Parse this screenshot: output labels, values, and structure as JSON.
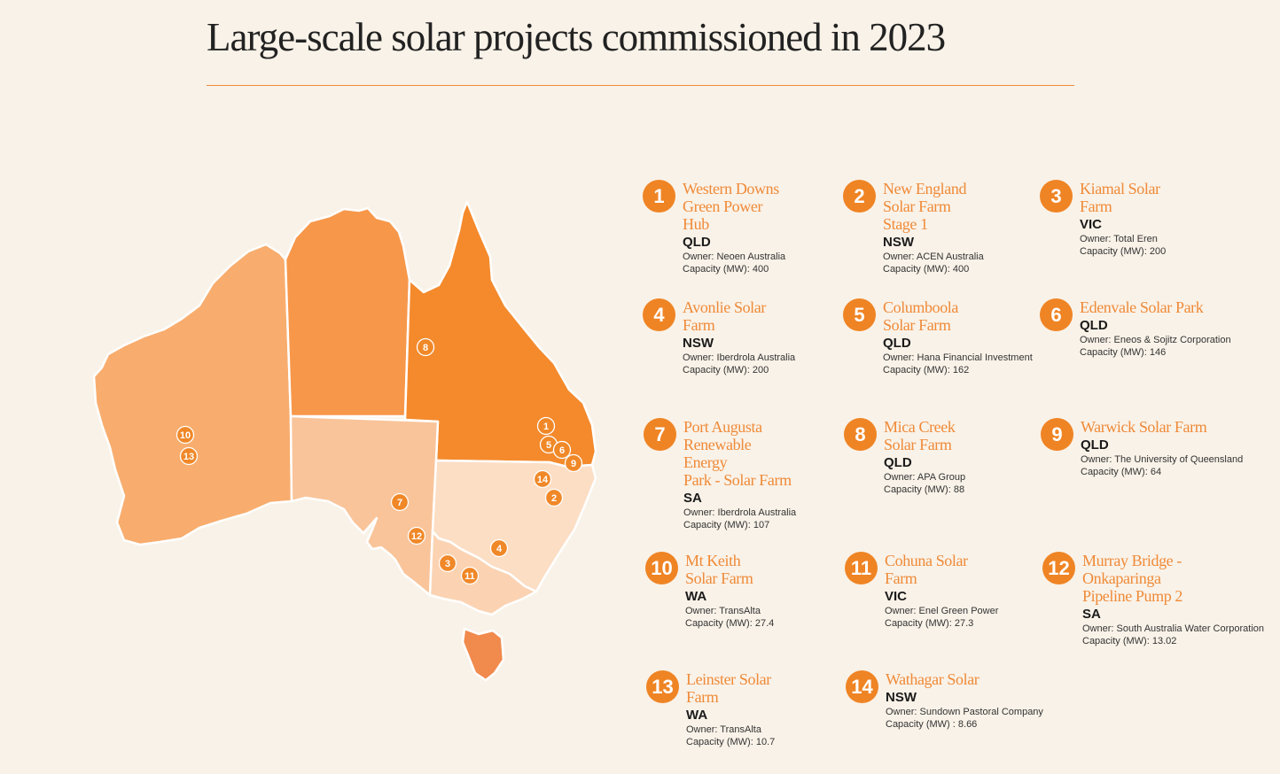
{
  "title": "Large-scale solar projects commissioned in 2023",
  "colors": {
    "background": "#f9f2e8",
    "accent": "#ef8424",
    "WA": "#f8ad6e",
    "NT": "#f7974a",
    "QLD": "#f48a2c",
    "SA": "#f9c49a",
    "NSW": "#fcdec5",
    "VIC": "#fbd3b2",
    "TAS": "#f18a4d"
  },
  "projects": [
    {
      "num": "1",
      "name": "Western Downs\nGreen Power Hub",
      "state": "QLD",
      "owner": "Owner: Neoen Australia",
      "capacity": "Capacity (MW): 400"
    },
    {
      "num": "2",
      "name": "New England\nSolar Farm Stage 1",
      "state": "NSW",
      "owner": "Owner: ACEN Australia",
      "capacity": "Capacity (MW): 400"
    },
    {
      "num": "3",
      "name": "Kiamal Solar Farm",
      "state": "VIC",
      "owner": "Owner: Total Eren",
      "capacity": "Capacity (MW): 200"
    },
    {
      "num": "4",
      "name": "Avonlie Solar Farm",
      "state": "NSW",
      "owner": "Owner: Iberdrola Australia",
      "capacity": "Capacity (MW): 200"
    },
    {
      "num": "5",
      "name": "Columboola\nSolar Farm",
      "state": "QLD",
      "owner": "Owner: Hana Financial Investment",
      "capacity": "Capacity (MW): 162"
    },
    {
      "num": "6",
      "name": "Edenvale Solar Park",
      "state": "QLD",
      "owner": "Owner: Eneos & Sojitz Corporation",
      "capacity": "Capacity (MW): 146"
    },
    {
      "num": "7",
      "name": "Port Augusta\nRenewable Energy\nPark - Solar Farm",
      "state": "SA",
      "owner": "Owner: Iberdrola Australia",
      "capacity": "Capacity (MW): 107"
    },
    {
      "num": "8",
      "name": "Mica Creek\nSolar Farm",
      "state": "QLD",
      "owner": "Owner: APA Group",
      "capacity": "Capacity (MW): 88"
    },
    {
      "num": "9",
      "name": "Warwick Solar Farm",
      "state": "QLD",
      "owner": "Owner: The University of Queensland",
      "capacity": "Capacity (MW): 64"
    },
    {
      "num": "10",
      "name": "Mt Keith\nSolar Farm",
      "state": "WA",
      "owner": "Owner: TransAlta",
      "capacity": "Capacity (MW): 27.4"
    },
    {
      "num": "11",
      "name": "Cohuna Solar Farm",
      "state": "VIC",
      "owner": "Owner: Enel Green Power",
      "capacity": "Capacity (MW): 27.3"
    },
    {
      "num": "12",
      "name": "Murray Bridge -\nOnkaparinga\nPipeline Pump 2",
      "state": "SA",
      "owner": "Owner: South Australia Water Corporation",
      "capacity": "Capacity (MW): 13.02"
    },
    {
      "num": "13",
      "name": "Leinster Solar Farm",
      "state": "WA",
      "owner": "Owner: TransAlta",
      "capacity": "Capacity (MW): 10.7"
    },
    {
      "num": "14",
      "name": "Wathagar Solar",
      "state": "NSW",
      "owner": "Owner: Sundown Pastoral Company",
      "capacity": "Capacity (MW) : 8.66"
    }
  ],
  "map_markers": [
    "1",
    "2",
    "3",
    "4",
    "5",
    "6",
    "7",
    "8",
    "9",
    "10",
    "11",
    "12",
    "13",
    "14"
  ]
}
